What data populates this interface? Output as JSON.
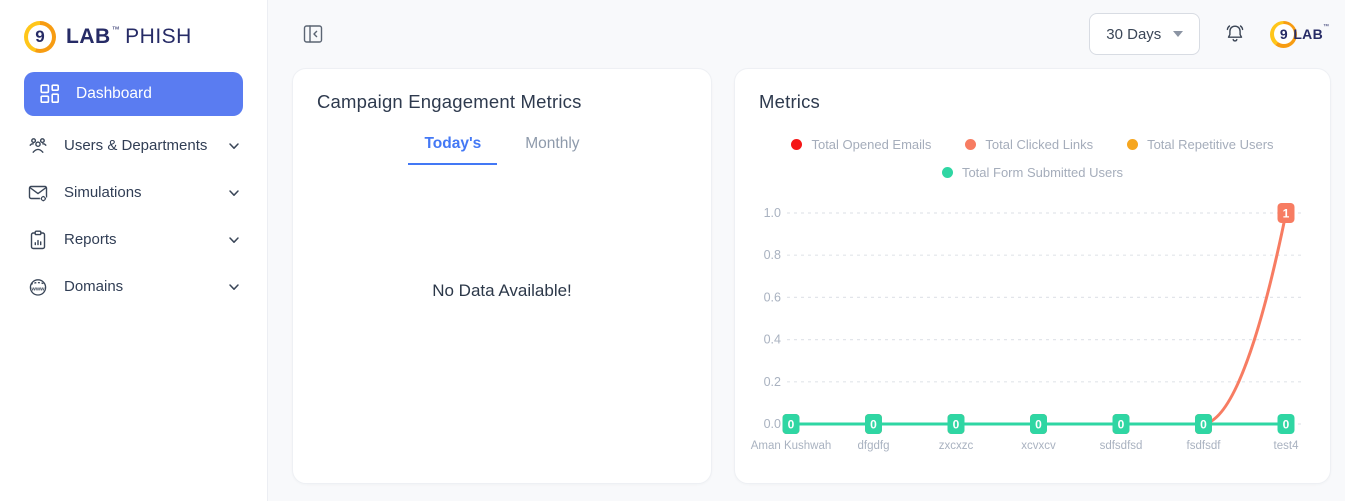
{
  "brand": {
    "mark": "9",
    "name_bold": "LAB",
    "tm": "™",
    "name_light": "PHISH"
  },
  "sidebar": {
    "items": [
      {
        "label": "Dashboard",
        "icon": "dashboard-grid-icon",
        "active": true
      },
      {
        "label": "Users & Departments",
        "icon": "users-icon",
        "active": false
      },
      {
        "label": "Simulations",
        "icon": "mail-gear-icon",
        "active": false
      },
      {
        "label": "Reports",
        "icon": "report-clipboard-icon",
        "active": false
      },
      {
        "label": "Domains",
        "icon": "globe-www-icon",
        "active": false
      }
    ]
  },
  "topbar": {
    "collapse_icon": "panel-collapse-icon",
    "period_selector": {
      "value": "30 Days"
    },
    "bell_icon": "notification-bell-icon",
    "brand_badge": {
      "mark": "9",
      "text": "LAB",
      "tm": "™"
    }
  },
  "campaign_card": {
    "title": "Campaign Engagement Metrics",
    "tabs": [
      {
        "label": "Today's",
        "active": true
      },
      {
        "label": "Monthly",
        "active": false
      }
    ],
    "empty_message": "No Data Available!"
  },
  "metrics_card": {
    "title": "Metrics"
  },
  "colors": {
    "sidebar_active_bg": "#5a7cf1",
    "tab_active_blue": "#4378f5",
    "brand_navy": "#262b66",
    "logo_orange": "#f79c12",
    "series_red": "#f51616",
    "series_salmon": "#f77c62",
    "series_amber": "#f6a61f",
    "series_teal": "#2fd6a3",
    "axis_gray": "#a9b2c0",
    "grid_gray": "#e2e5ea"
  },
  "chart_data": {
    "type": "line",
    "title": "Metrics",
    "categories": [
      "Aman Kushwah",
      "dfgdfg",
      "zxcxzc",
      "xcvxcv",
      "sdfsdfsd",
      "fsdfsdf",
      "test4"
    ],
    "series": [
      {
        "name": "Total Opened Emails",
        "color": "#f51616",
        "values": []
      },
      {
        "name": "Total Clicked Links",
        "color": "#f77c62",
        "values": [
          0,
          0,
          0,
          0,
          0,
          0,
          1
        ]
      },
      {
        "name": "Total Repetitive Users",
        "color": "#f6a61f",
        "values": []
      },
      {
        "name": "Total Form Submitted Users",
        "color": "#2fd6a3",
        "values": [
          0,
          0,
          0,
          0,
          0,
          0,
          0
        ]
      }
    ],
    "yticks": [
      "1.0",
      "0.8",
      "0.6",
      "0.4",
      "0.2",
      "0.0"
    ],
    "ylim": [
      0,
      1
    ],
    "grid": "horizontal-dashed",
    "legend_position": "top-center",
    "point_labels_visible": true
  }
}
